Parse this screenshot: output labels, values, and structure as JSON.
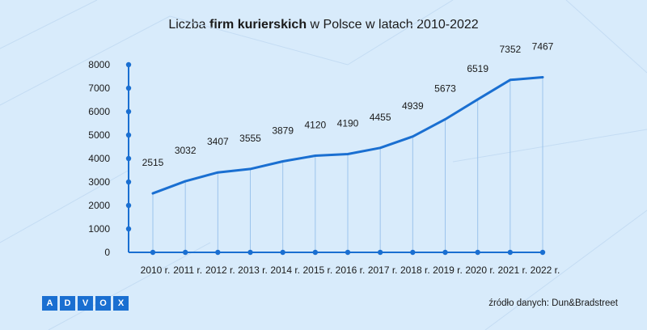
{
  "title": {
    "prefix": "Liczba ",
    "bold": "firm kurierskich",
    "suffix": " w Polsce w latach 2010-2022"
  },
  "logo": [
    "A",
    "D",
    "V",
    "O",
    "X"
  ],
  "source": "źródło danych: Dun&Bradstreet",
  "colors": {
    "line": "#1a6fd1",
    "background": "#d8ebfb",
    "pattern": "#c4dcf3"
  },
  "chart_data": {
    "type": "line",
    "categories": [
      "2010 r.",
      "2011 r.",
      "2012 r.",
      "2013 r.",
      "2014 r.",
      "2015 r.",
      "2016 r.",
      "2017 r.",
      "2018 r.",
      "2019 r.",
      "2020 r.",
      "2021 r.",
      "2022 r."
    ],
    "values": [
      2515,
      3032,
      3407,
      3555,
      3879,
      4120,
      4190,
      4455,
      4939,
      5673,
      6519,
      7352,
      7467
    ],
    "yticks": [
      0,
      1000,
      2000,
      3000,
      4000,
      5000,
      6000,
      7000,
      8000
    ],
    "ylim": [
      0,
      8000
    ],
    "title": "Liczba firm kurierskich w Polsce w latach 2010-2022",
    "xlabel": "",
    "ylabel": "",
    "grid": "vertical drop lines",
    "data_labels": true
  }
}
